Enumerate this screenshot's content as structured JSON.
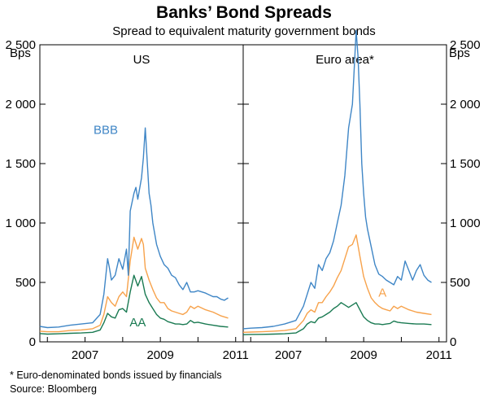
{
  "chart_data": {
    "type": "line",
    "title": "Banks’ Bond Spreads",
    "subtitle": "Spread to equivalent maturity government bonds",
    "units": {
      "left": "Bps",
      "right": "Bps"
    },
    "y_ticks": [
      "2 500",
      "2 000",
      "1 500",
      "1 000",
      "500",
      "0"
    ],
    "x_ticks": [
      "2007",
      "2009",
      "2011"
    ],
    "ylim": [
      0,
      2500
    ],
    "xlim": [
      2005.8,
      2011.2
    ],
    "grid": false,
    "colors": {
      "BBB": "#3f86c6",
      "A": "#f7a24b",
      "AA": "#1a7a52"
    },
    "panels": [
      {
        "title": "US",
        "series_labels": [
          {
            "key": "BBB",
            "text": "BBB"
          },
          {
            "key": "AA",
            "text": "AA"
          }
        ],
        "series": [
          {
            "key": "BBB",
            "x": [
              2005.8,
              2006.0,
              2006.3,
              2006.6,
              2006.9,
              2007.2,
              2007.4,
              2007.5,
              2007.6,
              2007.65,
              2007.7,
              2007.8,
              2007.9,
              2008.0,
              2008.1,
              2008.15,
              2008.2,
              2008.3,
              2008.35,
              2008.4,
              2008.5,
              2008.55,
              2008.6,
              2008.7,
              2008.75,
              2008.8,
              2008.9,
              2009.0,
              2009.1,
              2009.2,
              2009.3,
              2009.4,
              2009.5,
              2009.6,
              2009.7,
              2009.8,
              2009.9,
              2010.0,
              2010.2,
              2010.4,
              2010.5,
              2010.6,
              2010.7,
              2010.8
            ],
            "y": [
              130,
              120,
              125,
              140,
              150,
              160,
              230,
              400,
              700,
              620,
              520,
              560,
              700,
              610,
              780,
              560,
              1100,
              1250,
              1300,
              1200,
              1380,
              1550,
              1800,
              1250,
              1150,
              1000,
              820,
              720,
              650,
              620,
              560,
              540,
              480,
              440,
              500,
              420,
              420,
              430,
              410,
              380,
              380,
              360,
              350,
              370
            ]
          },
          {
            "key": "A",
            "x": [
              2005.8,
              2006.0,
              2006.3,
              2006.6,
              2006.9,
              2007.2,
              2007.4,
              2007.5,
              2007.6,
              2007.7,
              2007.8,
              2007.9,
              2008.0,
              2008.1,
              2008.2,
              2008.3,
              2008.4,
              2008.5,
              2008.55,
              2008.6,
              2008.7,
              2008.8,
              2008.9,
              2009.0,
              2009.1,
              2009.2,
              2009.3,
              2009.4,
              2009.5,
              2009.6,
              2009.7,
              2009.8,
              2009.9,
              2010.0,
              2010.2,
              2010.4,
              2010.6,
              2010.8
            ],
            "y": [
              90,
              85,
              85,
              95,
              100,
              110,
              140,
              230,
              380,
              330,
              300,
              380,
              420,
              380,
              680,
              880,
              780,
              870,
              820,
              620,
              520,
              440,
              370,
              330,
              330,
              280,
              260,
              250,
              240,
              230,
              250,
              300,
              280,
              300,
              270,
              250,
              220,
              200
            ]
          },
          {
            "key": "AA",
            "x": [
              2005.8,
              2006.0,
              2006.3,
              2006.6,
              2006.9,
              2007.2,
              2007.4,
              2007.5,
              2007.6,
              2007.7,
              2007.8,
              2007.9,
              2008.0,
              2008.1,
              2008.2,
              2008.3,
              2008.4,
              2008.5,
              2008.6,
              2008.7,
              2008.8,
              2008.9,
              2009.0,
              2009.1,
              2009.2,
              2009.3,
              2009.4,
              2009.5,
              2009.6,
              2009.7,
              2009.8,
              2009.9,
              2010.0,
              2010.2,
              2010.4,
              2010.6,
              2010.8
            ],
            "y": [
              70,
              65,
              68,
              72,
              75,
              80,
              100,
              160,
              240,
              210,
              200,
              270,
              280,
              250,
              420,
              560,
              470,
              550,
              400,
              330,
              280,
              230,
              200,
              190,
              170,
              160,
              150,
              150,
              145,
              150,
              180,
              160,
              165,
              150,
              140,
              130,
              125
            ]
          }
        ]
      },
      {
        "title": "Euro area*",
        "series_labels": [
          {
            "key": "A",
            "text": "A"
          }
        ],
        "series": [
          {
            "key": "BBB",
            "x": [
              2005.8,
              2006.0,
              2006.3,
              2006.6,
              2006.9,
              2007.2,
              2007.4,
              2007.5,
              2007.6,
              2007.7,
              2007.8,
              2007.9,
              2008.0,
              2008.1,
              2008.2,
              2008.3,
              2008.4,
              2008.5,
              2008.6,
              2008.7,
              2008.8,
              2008.85,
              2008.9,
              2008.95,
              2009.0,
              2009.05,
              2009.1,
              2009.2,
              2009.3,
              2009.4,
              2009.5,
              2009.6,
              2009.7,
              2009.8,
              2009.9,
              2010.0,
              2010.1,
              2010.2,
              2010.3,
              2010.4,
              2010.5,
              2010.6,
              2010.7,
              2010.8
            ],
            "y": [
              110,
              115,
              120,
              130,
              150,
              180,
              300,
              400,
              500,
              450,
              650,
              600,
              700,
              750,
              850,
              1000,
              1150,
              1400,
              1800,
              2000,
              2620,
              2400,
              2000,
              1500,
              1250,
              1050,
              950,
              800,
              650,
              570,
              550,
              520,
              500,
              480,
              550,
              520,
              680,
              600,
              520,
              600,
              650,
              560,
              520,
              500
            ]
          },
          {
            "key": "A",
            "x": [
              2005.8,
              2006.0,
              2006.3,
              2006.6,
              2006.9,
              2007.2,
              2007.4,
              2007.5,
              2007.6,
              2007.7,
              2007.8,
              2007.9,
              2008.0,
              2008.1,
              2008.2,
              2008.3,
              2008.4,
              2008.5,
              2008.6,
              2008.7,
              2008.8,
              2008.9,
              2009.0,
              2009.1,
              2009.2,
              2009.3,
              2009.4,
              2009.5,
              2009.6,
              2009.7,
              2009.8,
              2009.9,
              2010.0,
              2010.2,
              2010.4,
              2010.6,
              2010.8
            ],
            "y": [
              80,
              82,
              85,
              90,
              95,
              110,
              180,
              240,
              270,
              250,
              330,
              330,
              380,
              420,
              470,
              540,
              600,
              700,
              800,
              820,
              900,
              720,
              550,
              450,
              370,
              330,
              300,
              280,
              270,
              260,
              300,
              280,
              300,
              270,
              250,
              240,
              230
            ]
          },
          {
            "key": "AA",
            "x": [
              2005.8,
              2006.0,
              2006.3,
              2006.6,
              2006.9,
              2007.2,
              2007.4,
              2007.5,
              2007.6,
              2007.7,
              2007.8,
              2007.9,
              2008.0,
              2008.1,
              2008.2,
              2008.3,
              2008.4,
              2008.5,
              2008.6,
              2008.7,
              2008.8,
              2008.9,
              2009.0,
              2009.1,
              2009.2,
              2009.3,
              2009.4,
              2009.5,
              2009.6,
              2009.7,
              2009.8,
              2009.9,
              2010.0,
              2010.2,
              2010.4,
              2010.6,
              2010.8
            ],
            "y": [
              60,
              62,
              63,
              65,
              68,
              75,
              110,
              150,
              170,
              160,
              200,
              210,
              230,
              250,
              280,
              300,
              330,
              310,
              290,
              310,
              330,
              270,
              210,
              180,
              160,
              150,
              150,
              145,
              150,
              155,
              175,
              165,
              160,
              155,
              150,
              150,
              145
            ]
          }
        ]
      }
    ]
  },
  "footnotes": {
    "note": "*   Euro-denominated bonds issued by financials",
    "source": "Source: Bloomberg"
  }
}
